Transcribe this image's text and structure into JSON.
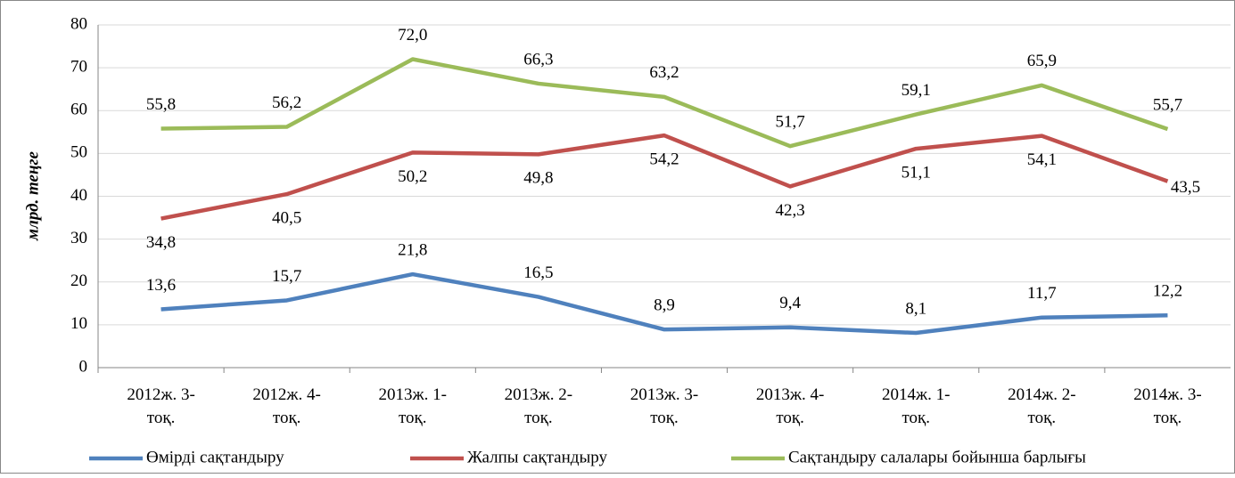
{
  "chart_data": {
    "type": "line",
    "y_label": "млрд. теңге",
    "categories": [
      "2012ж. 3-тоқ.",
      "2012ж. 4-тоқ.",
      "2013ж. 1-тоқ.",
      "2013ж. 2-тоқ.",
      "2013ж. 3-тоқ.",
      "2013ж. 4-тоқ.",
      "2014ж. 1-тоқ.",
      "2014ж. 2-тоқ.",
      "2014ж. 3-тоқ."
    ],
    "series": [
      {
        "name": "Өмірді сақтандыру",
        "color": "#4f81bd",
        "values": [
          13.6,
          15.7,
          21.8,
          16.5,
          8.9,
          9.4,
          8.1,
          11.7,
          12.2
        ],
        "value_labels": [
          "13,6",
          "15,7",
          "21,8",
          "16,5",
          "8,9",
          "9,4",
          "8,1",
          "11,7",
          "12,2"
        ]
      },
      {
        "name": "Жалпы сақтандыру",
        "color": "#c0504d",
        "values": [
          34.8,
          40.5,
          50.2,
          49.8,
          54.2,
          42.3,
          51.1,
          54.1,
          43.5
        ],
        "value_labels": [
          "34,8",
          "40,5",
          "50,2",
          "49,8",
          "54,2",
          "42,3",
          "51,1",
          "54,1",
          "43,5"
        ]
      },
      {
        "name": "Сақтандыру салалары бойынша барлығы",
        "color": "#9bbb59",
        "values": [
          55.8,
          56.2,
          72.0,
          66.3,
          63.2,
          51.7,
          59.1,
          65.9,
          55.7
        ],
        "value_labels": [
          "55,8",
          "56,2",
          "72,0",
          "66,3",
          "63,2",
          "51,7",
          "59,1",
          "65,9",
          "55,7"
        ]
      }
    ],
    "ylim": [
      0,
      80
    ],
    "yticks": [
      0,
      10,
      20,
      30,
      40,
      50,
      60,
      70,
      80
    ],
    "grid": true,
    "legend": "bottom"
  }
}
